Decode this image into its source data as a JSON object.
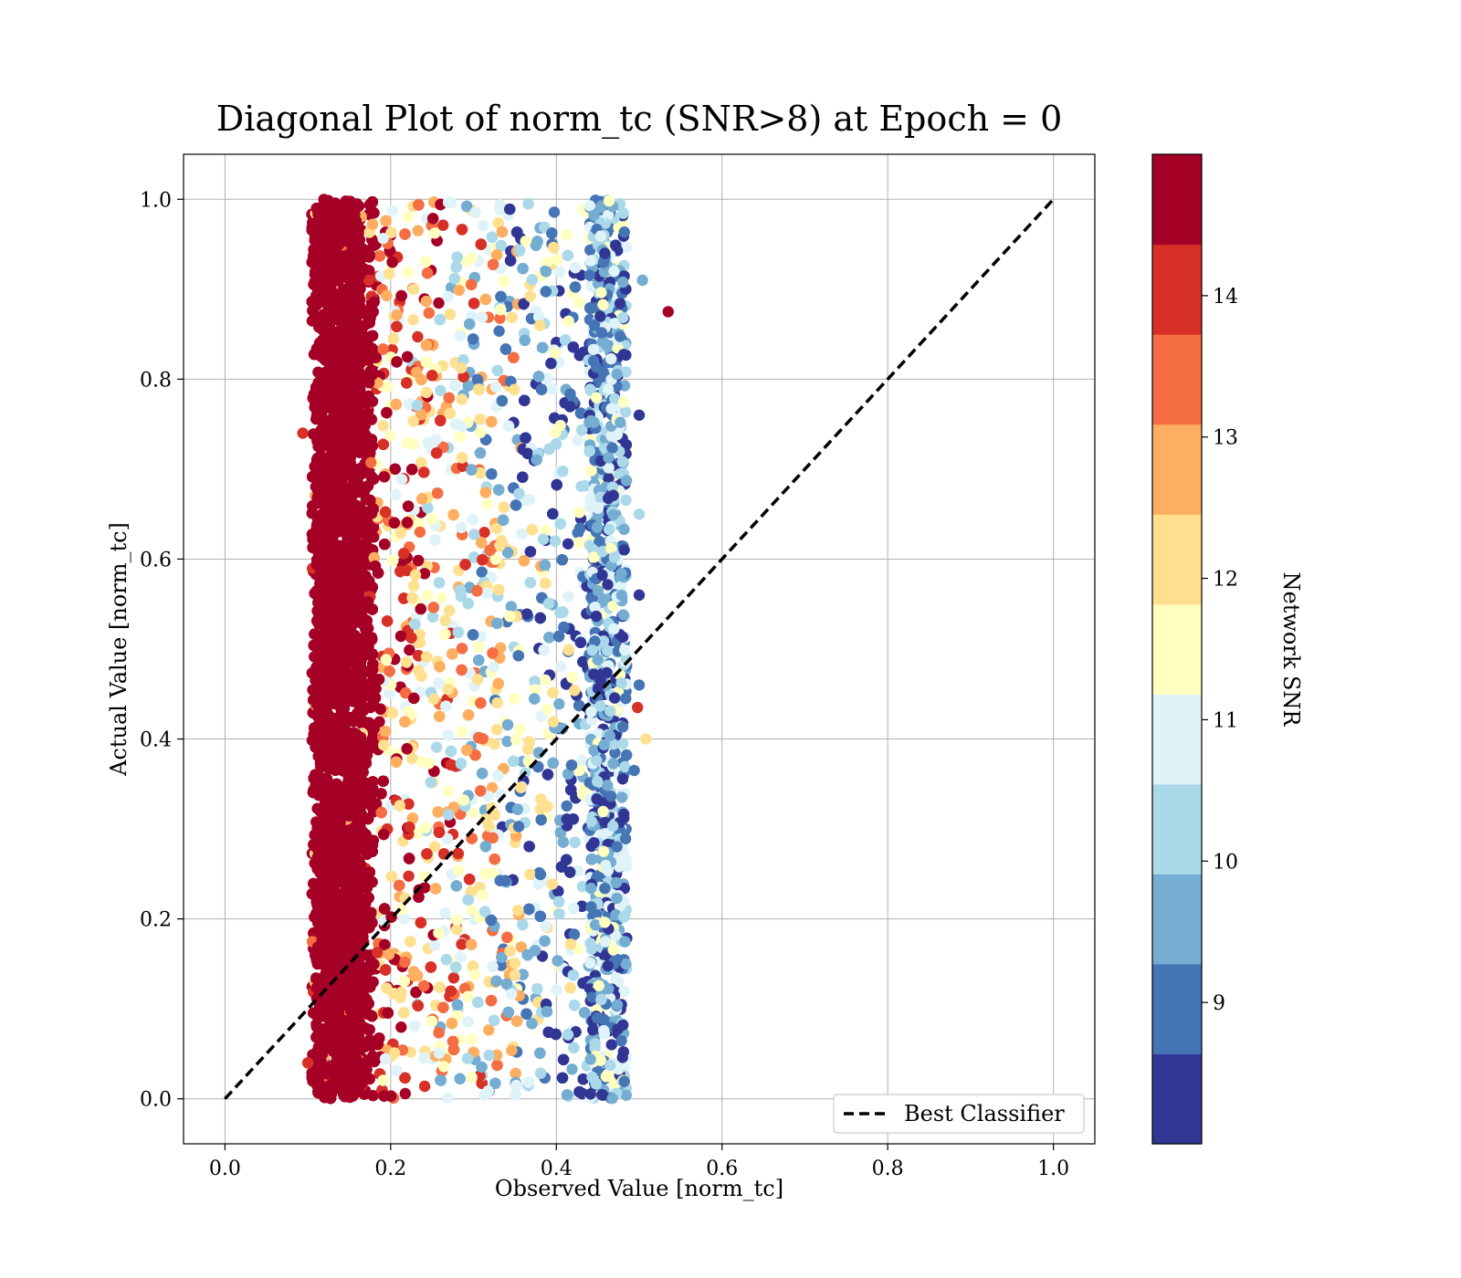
{
  "chart_data": {
    "type": "scatter",
    "title": "Diagonal Plot of norm_tc (SNR>8) at Epoch = 0",
    "xlabel": "Observed Value [norm_tc]",
    "ylabel": "Actual Value [norm_tc]",
    "xlim": [
      -0.05,
      1.05
    ],
    "ylim": [
      -0.05,
      1.05
    ],
    "xticks": [
      "0.0",
      "0.2",
      "0.4",
      "0.6",
      "0.8",
      "1.0"
    ],
    "yticks": [
      "0.0",
      "0.2",
      "0.4",
      "0.6",
      "0.8",
      "1.0"
    ],
    "grid": true,
    "legend": {
      "position": "lower-right",
      "entries": [
        {
          "label": "Best Classifier",
          "style": "dashed",
          "color": "#000000"
        }
      ]
    },
    "reference_line": {
      "name": "Best Classifier",
      "x": [
        0.0,
        1.0
      ],
      "y": [
        0.0,
        1.0
      ],
      "style": "dashed"
    },
    "colorbar": {
      "label": "Network SNR",
      "range": [
        8.0,
        15.0
      ],
      "ticks": [
        "9",
        "10",
        "11",
        "12",
        "13",
        "14"
      ],
      "colors": [
        "#313695",
        "#4575b4",
        "#74add1",
        "#abd9e9",
        "#e0f3f8",
        "#ffffbf",
        "#fee090",
        "#fdae61",
        "#f46d43",
        "#d73027",
        "#a50026"
      ]
    },
    "scatter_summary": {
      "x_range": [
        0.1,
        0.5
      ],
      "y_range": [
        0.0,
        1.0
      ],
      "density_note": "dense vertical band, high SNR concentrated near x=0.1-0.2, lower SNR near x=0.4-0.5"
    },
    "outliers": [
      {
        "x": 0.535,
        "y": 0.875,
        "snr": 14.8
      },
      {
        "x": 0.508,
        "y": 0.4,
        "snr": 12.3
      },
      {
        "x": 0.504,
        "y": 0.91,
        "snr": 9.8
      },
      {
        "x": 0.5,
        "y": 0.76,
        "snr": 8.3
      },
      {
        "x": 0.5,
        "y": 0.65,
        "snr": 10.2
      },
      {
        "x": 0.5,
        "y": 0.56,
        "snr": 8.2
      },
      {
        "x": 0.5,
        "y": 0.46,
        "snr": 9.0
      },
      {
        "x": 0.498,
        "y": 0.435,
        "snr": 13.8
      },
      {
        "x": 0.494,
        "y": 0.365,
        "snr": 9.1
      },
      {
        "x": 0.094,
        "y": 0.74,
        "snr": 14.2
      },
      {
        "x": 0.1,
        "y": 0.04,
        "snr": 14.2
      }
    ]
  }
}
